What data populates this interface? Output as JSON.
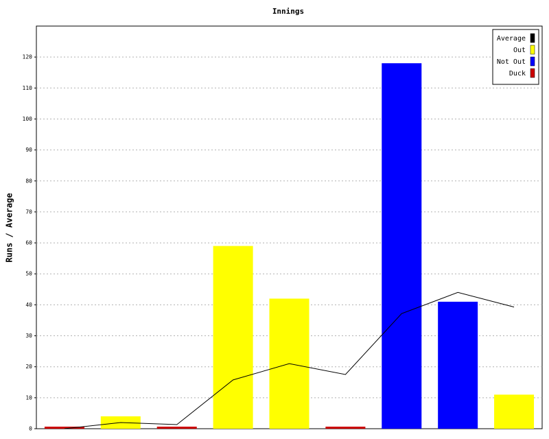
{
  "chart_data": {
    "type": "bar",
    "title": "Innings",
    "y_label": "Runs / Average",
    "categories": [
      null,
      null,
      null,
      null,
      null,
      null,
      null,
      null,
      null
    ],
    "series": [
      {
        "name": "Average",
        "color": "#000000",
        "type": "line",
        "values": [
          0,
          2,
          1.33,
          15.75,
          21,
          17.5,
          37.17,
          44,
          39.29
        ]
      },
      {
        "name": "Out",
        "color": "#ffff00",
        "type": "bar",
        "values": [
          null,
          4,
          null,
          59,
          42,
          null,
          null,
          null,
          11
        ]
      },
      {
        "name": "Not Out",
        "color": "#0000ff",
        "type": "bar",
        "values": [
          null,
          null,
          null,
          null,
          null,
          null,
          118,
          41,
          null
        ]
      },
      {
        "name": "Duck",
        "color": "#cc0000",
        "type": "bar",
        "values": [
          0,
          null,
          0,
          null,
          null,
          0,
          null,
          null,
          null
        ]
      }
    ],
    "ylim": [
      0,
      130
    ],
    "yticks": [
      0,
      10,
      20,
      30,
      40,
      50,
      60,
      70,
      80,
      90,
      100,
      110,
      120
    ],
    "grid": true,
    "legend": "top-right"
  }
}
